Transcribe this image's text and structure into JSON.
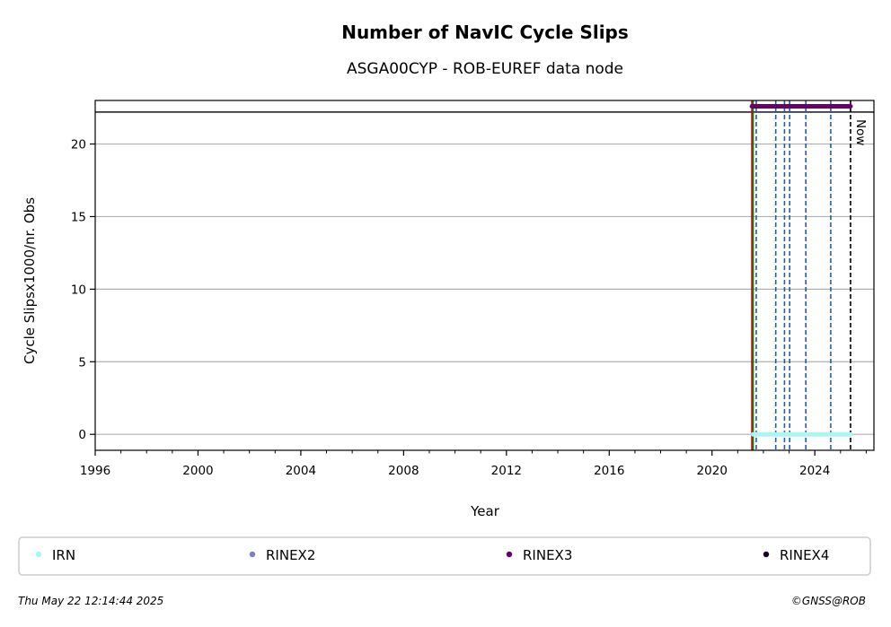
{
  "chart_data": {
    "type": "line",
    "title": "Number of NavIC Cycle Slips",
    "subtitle": "ASGA00CYP - ROB-EUREF data node",
    "xlabel": "Year",
    "ylabel": "Cycle Slipsx1000/nr. Obs",
    "xlim": [
      1996,
      2026.3
    ],
    "ylim": [
      -1.1,
      23.0
    ],
    "xticks": [
      1996,
      2000,
      2004,
      2008,
      2012,
      2016,
      2020,
      2024
    ],
    "yticks": [
      0,
      5,
      10,
      15,
      20
    ],
    "grid": "horizontal",
    "top_reference_line": 22.2,
    "series": [
      {
        "name": "IRN",
        "color": "#aaf5f5",
        "x_start": 2021.6,
        "x_end": 2025.39,
        "value": 0
      },
      {
        "name": "RINEX2",
        "color": "#7f7fbf",
        "x_start": null,
        "x_end": null,
        "value": null
      },
      {
        "name": "RINEX3",
        "color": "#660066",
        "x_start": 2021.55,
        "x_end": 2025.39,
        "value": 22.6
      },
      {
        "name": "RINEX4",
        "color": "#1a0022",
        "x_start": null,
        "x_end": null,
        "value": null
      }
    ],
    "event_lines": [
      {
        "x": 2021.55,
        "color": "#cc0000",
        "style": "solid"
      },
      {
        "x": 2021.6,
        "color": "#008000",
        "style": "solid"
      },
      {
        "x": 2021.72,
        "color": "#1f5fa0",
        "style": "dashed"
      },
      {
        "x": 2022.48,
        "color": "#1f5fa0",
        "style": "dashed"
      },
      {
        "x": 2022.82,
        "color": "#1f5fa0",
        "style": "dashed"
      },
      {
        "x": 2023.02,
        "color": "#1f5fa0",
        "style": "dashed"
      },
      {
        "x": 2023.65,
        "color": "#1f5fa0",
        "style": "dashed"
      },
      {
        "x": 2024.62,
        "color": "#1f5fa0",
        "style": "dashed"
      },
      {
        "x": 2025.39,
        "color": "#000000",
        "style": "dashed"
      }
    ],
    "now_label": "Now",
    "legend_position": "bottom"
  },
  "footer": {
    "timestamp": "Thu May 22 12:14:44 2025",
    "credit": "©GNSS@ROB"
  }
}
